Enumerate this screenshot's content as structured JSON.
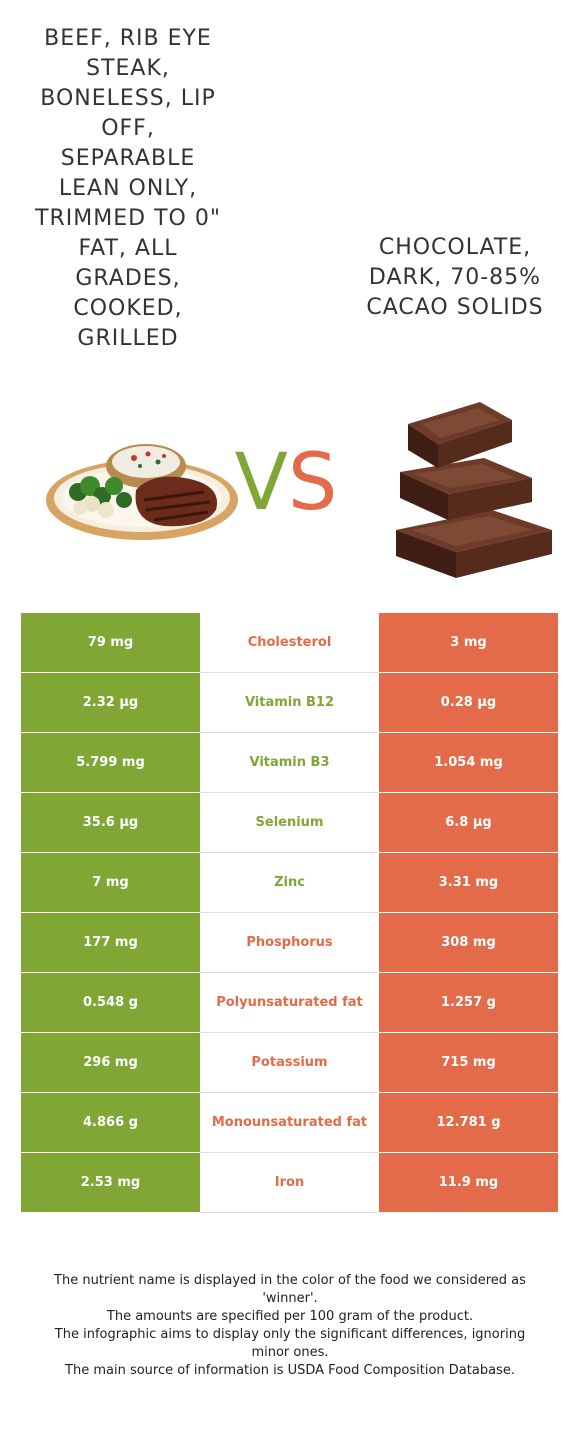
{
  "food_left": {
    "name": "BEEF, RIB EYE STEAK, BONELESS, LIP OFF, SEPARABLE LEAN ONLY, TRIMMED TO 0\" FAT, ALL GRADES, COOKED, GRILLED",
    "color": "#80a735"
  },
  "food_right": {
    "name": "CHOCOLATE, DARK, 70-85% CACAO SOLIDS",
    "color": "#e36b49"
  },
  "vs": {
    "v": "V",
    "s": "S"
  },
  "rows": [
    {
      "left": "79 mg",
      "nutrient": "Cholesterol",
      "right": "3 mg",
      "winner": "right"
    },
    {
      "left": "2.32 µg",
      "nutrient": "Vitamin B12",
      "right": "0.28 µg",
      "winner": "left"
    },
    {
      "left": "5.799 mg",
      "nutrient": "Vitamin B3",
      "right": "1.054 mg",
      "winner": "left"
    },
    {
      "left": "35.6 µg",
      "nutrient": "Selenium",
      "right": "6.8 µg",
      "winner": "left"
    },
    {
      "left": "7 mg",
      "nutrient": "Zinc",
      "right": "3.31 mg",
      "winner": "left"
    },
    {
      "left": "177 mg",
      "nutrient": "Phosphorus",
      "right": "308 mg",
      "winner": "right"
    },
    {
      "left": "0.548 g",
      "nutrient": "Polyunsaturated fat",
      "right": "1.257 g",
      "winner": "right"
    },
    {
      "left": "296 mg",
      "nutrient": "Potassium",
      "right": "715 mg",
      "winner": "right"
    },
    {
      "left": "4.866 g",
      "nutrient": "Monounsaturated fat",
      "right": "12.781 g",
      "winner": "right"
    },
    {
      "left": "2.53 mg",
      "nutrient": "Iron",
      "right": "11.9 mg",
      "winner": "right"
    }
  ],
  "footer": [
    "The nutrient name is displayed in the color of the food we considered as 'winner'.",
    "The amounts are specified per 100 gram of the product.",
    "The infographic aims to display only the significant differences, ignoring minor ones.",
    "The main source of information is USDA Food Composition Database."
  ]
}
